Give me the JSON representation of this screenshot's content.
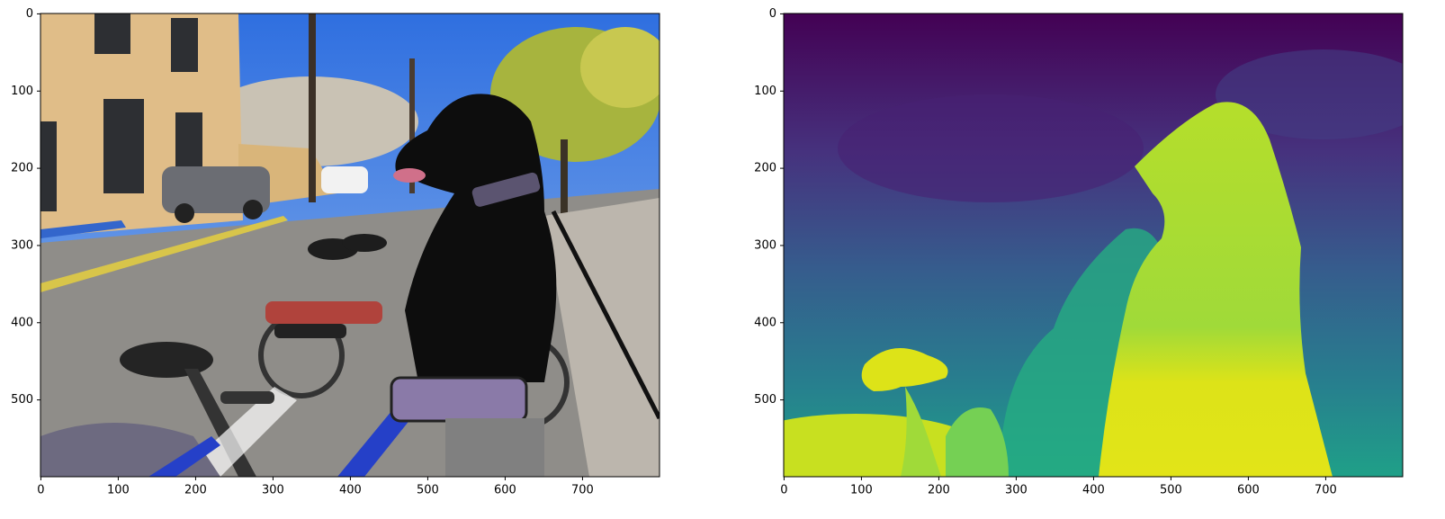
{
  "chart_data": [
    {
      "type": "image",
      "xlim": [
        -0.5,
        799.5
      ],
      "ylim": [
        599.5,
        -0.5
      ],
      "xticks": [
        0,
        100,
        200,
        300,
        400,
        500,
        600,
        700
      ],
      "yticks": [
        0,
        100,
        200,
        300,
        400,
        500
      ]
    },
    {
      "type": "image",
      "xlim": [
        -0.5,
        799.5
      ],
      "ylim": [
        599.5,
        -0.5
      ],
      "xticks": [
        0,
        100,
        200,
        300,
        400,
        500,
        600,
        700
      ],
      "yticks": [
        0,
        100,
        200,
        300,
        400,
        500
      ]
    }
  ]
}
